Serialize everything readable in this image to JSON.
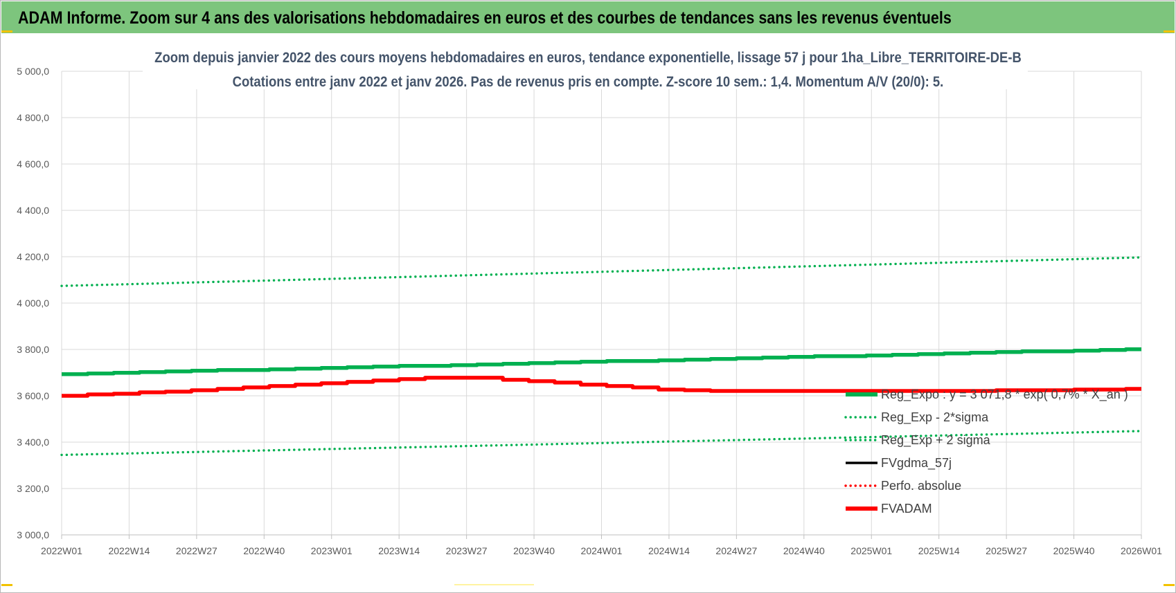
{
  "banner": {
    "title": "ADAM Informe. Zoom sur 4 ans des valorisations hebdomadaires en euros et des courbes de tendances sans les revenus éventuels",
    "color": "#7dc57d"
  },
  "chart_data": {
    "type": "line",
    "title": "Zoom depuis janvier 2022 des cours moyens hebdomadaires en euros, tendance exponentielle, lissage 57 j pour 1ha_Libre_TERRITOIRE-DE-B",
    "subtitle": "Cotations entre janv 2022 et janv 2026. Pas de revenus pris en compte. Z-score 10 sem.: 1,4. Momentum A/V (20/0): 5.",
    "xlabel": "",
    "ylabel": "",
    "ylim": [
      3000,
      5000
    ],
    "y_ticks": [
      "3 000,0",
      "3 200,0",
      "3 400,0",
      "3 600,0",
      "3 800,0",
      "4 000,0",
      "4 200,0",
      "4 400,0",
      "4 600,0",
      "4 800,0",
      "5 000,0"
    ],
    "x_ticks": [
      "2022W01",
      "2022W14",
      "2022W27",
      "2022W40",
      "2023W01",
      "2023W14",
      "2023W27",
      "2023W40",
      "2024W01",
      "2024W14",
      "2024W27",
      "2024W40",
      "2025W01",
      "2025W14",
      "2025W27",
      "2025W40",
      "2026W01"
    ],
    "grid": true,
    "legend_position": "right",
    "series": [
      {
        "name": "Reg_Expo : y = 3 071,8 * exp( 0,7% * X_an )",
        "color": "#00b050",
        "style": "solid",
        "width": "thick",
        "key_x": [
          0,
          208
        ],
        "key_values": [
          3694,
          3803
        ]
      },
      {
        "name": "Reg_Exp - 2*sigma",
        "color": "#00b050",
        "style": "dotted",
        "width": "medium",
        "key_x": [
          0,
          208
        ],
        "key_values": [
          3345,
          3448
        ]
      },
      {
        "name": "Reg_Exp + 2 sigma",
        "color": "#00b050",
        "style": "dotted",
        "width": "medium",
        "key_x": [
          0,
          208
        ],
        "key_values": [
          4074,
          4197
        ]
      },
      {
        "name": "FVgdma_57j",
        "color": "#000000",
        "style": "solid",
        "width": "medium",
        "key_x": [
          0,
          10,
          20,
          30,
          40,
          50,
          60,
          70,
          78,
          85,
          95,
          105,
          115,
          125,
          132,
          150,
          170,
          190,
          200,
          208
        ],
        "key_values": [
          3600,
          3609,
          3618,
          3630,
          3643,
          3655,
          3666,
          3676,
          3677,
          3668,
          3655,
          3640,
          3627,
          3621,
          3620,
          3620,
          3621,
          3625,
          3628,
          3630
        ]
      },
      {
        "name": "Perfo. absolue",
        "color": "#ff0000",
        "style": "dotted",
        "width": "medium",
        "key_x": [],
        "key_values": []
      },
      {
        "name": "FVADAM",
        "color": "#ff0000",
        "style": "solid",
        "width": "thick",
        "key_x": [
          0,
          10,
          20,
          30,
          40,
          50,
          60,
          70,
          78,
          85,
          95,
          105,
          115,
          125,
          132,
          150,
          170,
          190,
          200,
          208
        ],
        "key_values": [
          3600,
          3609,
          3618,
          3630,
          3643,
          3655,
          3667,
          3677,
          3679,
          3669,
          3656,
          3641,
          3628,
          3621,
          3620,
          3620,
          3621,
          3625,
          3628,
          3630
        ]
      }
    ]
  }
}
